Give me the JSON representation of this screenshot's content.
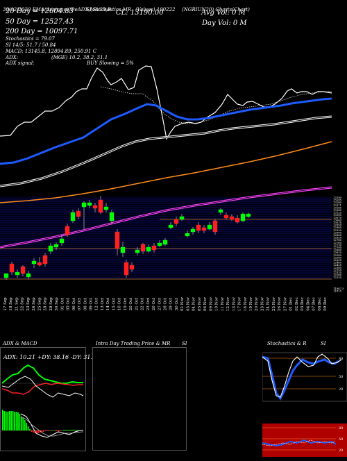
{
  "header": {
    "line1_left": "30/12/2020 EMA(Averages)DeADX,MACD,B",
    "line1_mid": "SI,Stochastics,MR",
    "line1_right": "(Values) 100222",
    "line1_right2": "(NGRIUN20) Charts(Chart)",
    "ma20": "20 Day = 12604.83",
    "ma50": "50 Day = 12527.43",
    "ma200": "200 Day = 10097.71",
    "close": "CL: 13190.00",
    "avgvol": "Avg Vol: 0 M",
    "dayvol": "Day Vol: 0 M",
    "stoch": "Stochastics = 79.07",
    "si": "SI 14/5: 51.7 / 50.84",
    "macd": "MACD: 13145.8, 12894.89, 250.91 C",
    "adx": "ADX:",
    "mrsi": "(MGE) 10.2, 38.2, 31.1",
    "adx_signal": "ADX signal:",
    "buy": "BUY Slowing = 5%"
  },
  "panels": {
    "adx_title": "ADX & MACD",
    "adx_values": "ADX: 10.21 +DY: 38.16 -DY: 31.09",
    "intraday_title": "Intra Day Trading Price & MR",
    "intraday_si": "SI",
    "stoch_title": "Stochastics & R",
    "stoch_si": "SI",
    "stoch_levels": [
      "80",
      "50",
      "20"
    ],
    "si_levels": [
      "80",
      "50",
      "20"
    ]
  },
  "chart_data": {
    "type": "candlestick",
    "dates": [
      "17 Sep",
      "18 Sep",
      "21 Sep",
      "22 Sep",
      "23 Sep",
      "24 Sep",
      "25 Sep",
      "28 Sep",
      "29 Sep",
      "30 Sep",
      "01 Oct",
      "05 Oct",
      "06 Oct",
      "07 Oct",
      "08 Oct",
      "09 Oct",
      "12 Oct",
      "13 Oct",
      "14 Oct",
      "15 Oct",
      "16 Oct",
      "19 Oct",
      "20 Oct",
      "21 Oct",
      "22 Oct",
      "23 Oct",
      "26 Oct",
      "27 Oct",
      "28 Oct",
      "29 Oct",
      "30 Oct",
      "02 Nov",
      "03 Nov",
      "04 Nov",
      "05 Nov",
      "06 Nov",
      "09 Nov",
      "10 Nov",
      "11 Nov",
      "12 Nov",
      "13 Nov",
      "17 Nov",
      "18 Nov",
      "19 Nov",
      "20 Nov",
      "23 Nov",
      "24 Nov",
      "25 Nov",
      "26 Nov",
      "27 Nov",
      "01 Dec",
      "02 Dec",
      "03 Dec",
      "04 Dec",
      "07 Dec",
      "08 Dec",
      "09 Dec"
    ],
    "price_axis": [
      "13190",
      "13185",
      "13180",
      "13171",
      "13165",
      "13140",
      "13125",
      "13100",
      "13070",
      "13040",
      "13018",
      "12990",
      "12960",
      "12920",
      "12900",
      "12860",
      "12820",
      "12780",
      "12760",
      "12730",
      "12700",
      "12660",
      "12620",
      "12580",
      "12540",
      "12500",
      "12460",
      "12420",
      "12380",
      "12350",
      "12320",
      "12280",
      "12220",
      "11867.5",
      "11815"
    ],
    "series": [
      {
        "name": "EMA 20",
        "color": "#ffffff"
      },
      {
        "name": "EMA 50",
        "color": "#1e5bff"
      },
      {
        "name": "EMA 100",
        "color": "#ffffff"
      },
      {
        "name": "EMA 200",
        "color": "#ff8c1a"
      },
      {
        "name": "MA",
        "color": "#ff44ff"
      }
    ]
  }
}
